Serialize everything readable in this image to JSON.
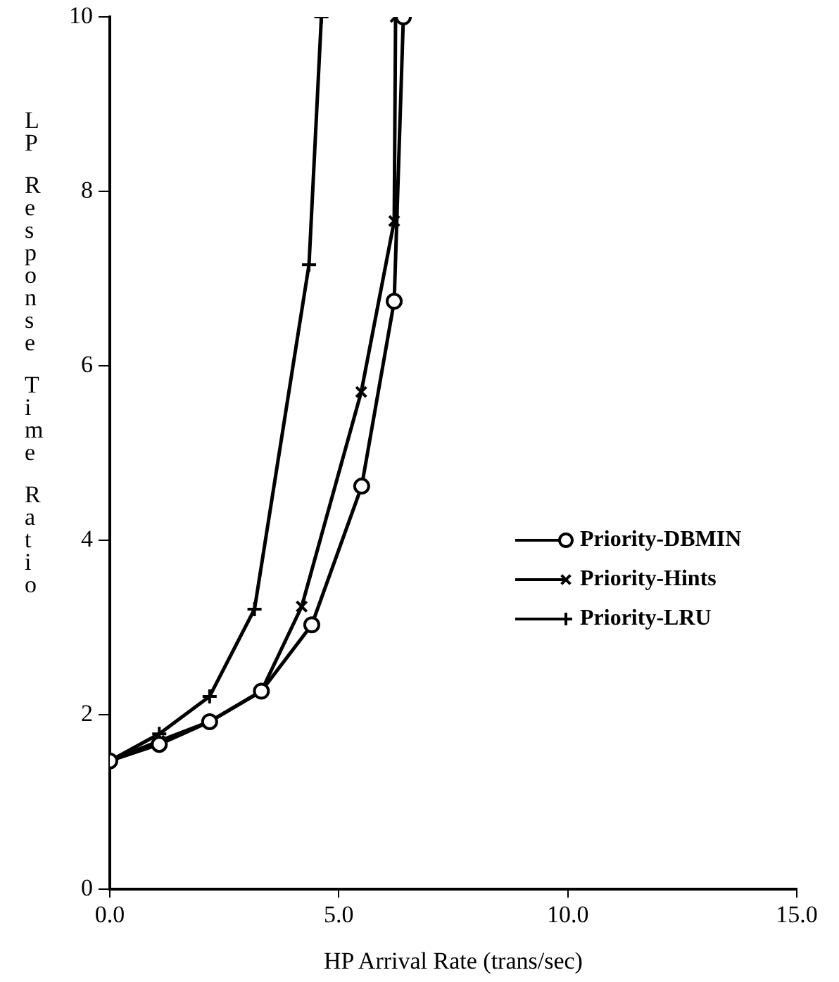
{
  "chart_data": {
    "type": "line",
    "xlabel": "HP Arrival Rate (trans/sec)",
    "ylabel": "LP Response Time Ratio",
    "xlim": [
      0,
      15
    ],
    "xticks": [
      {
        "value": 0,
        "label": "0.0"
      },
      {
        "value": 5,
        "label": "5.0"
      },
      {
        "value": 10,
        "label": "10.0"
      },
      {
        "value": 15,
        "label": "15.0"
      }
    ],
    "ylim": [
      0,
      10
    ],
    "yticks": [
      0,
      2,
      4,
      6,
      8,
      10
    ],
    "grid": false,
    "legend": "right",
    "line_style": "solid",
    "series": [
      {
        "name": "Priority-DBMIN",
        "color": "#000000",
        "marker": "circle",
        "x": [
          0,
          1.08,
          2.18,
          3.31,
          4.41,
          5.5,
          6.21,
          6.41
        ],
        "values": [
          1.47,
          1.66,
          1.92,
          2.27,
          3.03,
          4.62,
          6.74,
          10
        ]
      },
      {
        "name": "Priority-Hints",
        "color": "#000000",
        "marker": "cross",
        "x": [
          0,
          1.08,
          2.18,
          3.31,
          4.19,
          5.49,
          6.21,
          6.24
        ],
        "values": [
          1.47,
          1.7,
          1.92,
          2.27,
          3.24,
          5.7,
          7.66,
          10
        ]
      },
      {
        "name": "Priority-LRU",
        "color": "#000000",
        "marker": "plus",
        "x": [
          0,
          1.08,
          2.18,
          3.16,
          4.35,
          4.62
        ],
        "values": [
          1.47,
          1.78,
          2.21,
          3.21,
          7.16,
          10
        ]
      }
    ]
  }
}
